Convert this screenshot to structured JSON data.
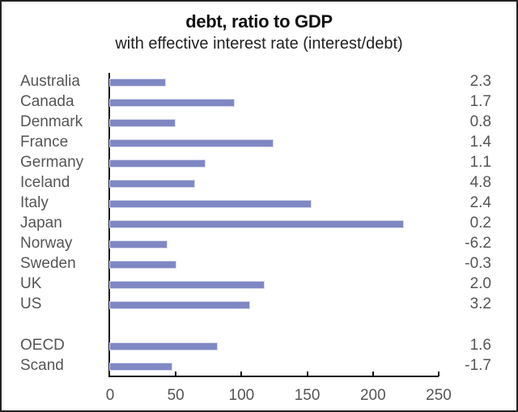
{
  "chart_data": {
    "type": "bar",
    "orientation": "horizontal",
    "title": "debt, ratio to GDP",
    "subtitle": "with effective interest rate (interest/debt)",
    "xlabel": "",
    "ylabel": "",
    "xlim": [
      0,
      250
    ],
    "x_ticks": [
      0,
      50,
      100,
      150,
      200,
      250
    ],
    "grid": false,
    "legend": null,
    "bar_color": "#8088c4",
    "categories": [
      "Australia",
      "Canada",
      "Denmark",
      "France",
      "Germany",
      "Iceland",
      "Italy",
      "Japan",
      "Norway",
      "Sweden",
      "UK",
      "US",
      "OECD",
      "Scand"
    ],
    "series": [
      {
        "name": "debt, ratio to GDP",
        "values": [
          42,
          94,
          49,
          124,
          72,
          64,
          153,
          223,
          43,
          50,
          117,
          106,
          81,
          47
        ]
      }
    ],
    "annotations": {
      "name": "effective interest rate (interest/debt)",
      "values": [
        "2.3",
        "1.7",
        "0.8",
        "1.4",
        "1.1",
        "4.8",
        "2.4",
        "0.2",
        "-6.2",
        "-0.3",
        "2.0",
        "3.2",
        "1.6",
        "-1.7"
      ]
    }
  },
  "title": "debt, ratio to GDP",
  "subtitle": "with effective interest rate (interest/debt)",
  "rows": [
    {
      "label": "Australia",
      "value": 42,
      "rate": "2.3"
    },
    {
      "label": "Canada",
      "value": 94,
      "rate": "1.7"
    },
    {
      "label": "Denmark",
      "value": 49,
      "rate": "0.8"
    },
    {
      "label": "France",
      "value": 124,
      "rate": "1.4"
    },
    {
      "label": "Germany",
      "value": 72,
      "rate": "1.1"
    },
    {
      "label": "Iceland",
      "value": 64,
      "rate": "4.8"
    },
    {
      "label": "Italy",
      "value": 153,
      "rate": "2.4"
    },
    {
      "label": "Japan",
      "value": 223,
      "rate": "0.2"
    },
    {
      "label": "Norway",
      "value": 43,
      "rate": "-6.2"
    },
    {
      "label": "Sweden",
      "value": 50,
      "rate": "-0.3"
    },
    {
      "label": "UK",
      "value": 117,
      "rate": "2.0"
    },
    {
      "label": "US",
      "value": 106,
      "rate": "3.2"
    },
    {
      "label": "OECD",
      "value": 81,
      "rate": "1.6"
    },
    {
      "label": "Scand",
      "value": 47,
      "rate": "-1.7"
    }
  ],
  "x_ticks": [
    "0",
    "50",
    "100",
    "150",
    "200",
    "250"
  ]
}
